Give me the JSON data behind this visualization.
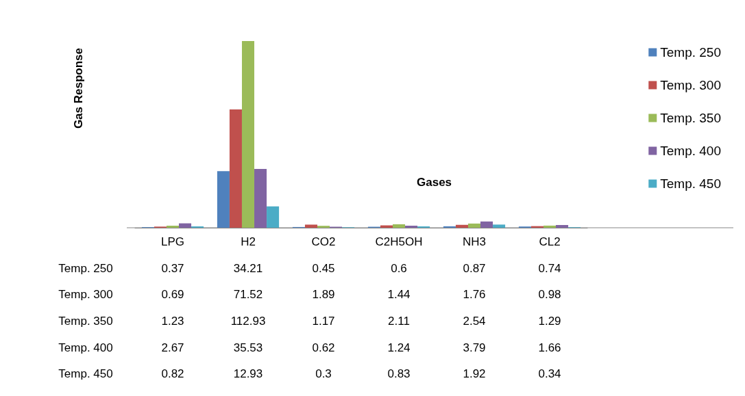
{
  "chart_data": {
    "type": "bar",
    "xlabel": "Gases",
    "ylabel": "Gas Response",
    "categories": [
      "LPG",
      "H2",
      "CO2",
      "C2H5OH",
      "NH3",
      "CL2"
    ],
    "series": [
      {
        "name": "Temp. 250",
        "color": "#4f81bd",
        "values": [
          0.37,
          34.21,
          0.45,
          0.6,
          0.87,
          0.74
        ]
      },
      {
        "name": "Temp. 300",
        "color": "#c0504d",
        "values": [
          0.69,
          71.52,
          1.89,
          1.44,
          1.76,
          0.98
        ]
      },
      {
        "name": "Temp. 350",
        "color": "#9bbb59",
        "values": [
          1.23,
          112.93,
          1.17,
          2.11,
          2.54,
          1.29
        ]
      },
      {
        "name": "Temp. 400",
        "color": "#8064a2",
        "values": [
          2.67,
          35.53,
          0.62,
          1.24,
          3.79,
          1.66
        ]
      },
      {
        "name": "Temp. 450",
        "color": "#4bacc6",
        "values": [
          0.82,
          12.93,
          0.3,
          0.83,
          1.92,
          0.34
        ]
      }
    ],
    "data_labels": true,
    "legend": "right"
  }
}
